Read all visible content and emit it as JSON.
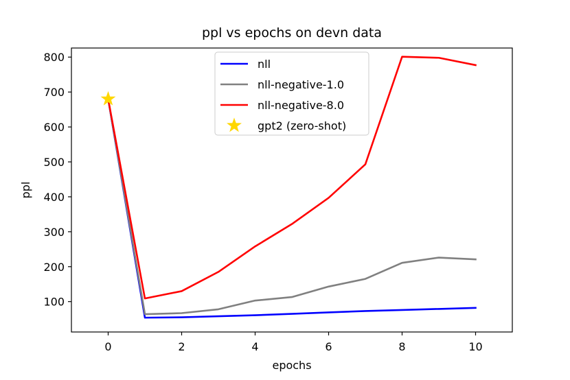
{
  "chart_data": {
    "type": "line",
    "title": "ppl vs epochs on devn data",
    "xlabel": "epochs",
    "ylabel": "ppl",
    "xlim": [
      -1,
      11
    ],
    "ylim": [
      13,
      826
    ],
    "xticks": [
      0,
      2,
      4,
      6,
      8,
      10
    ],
    "yticks": [
      100,
      200,
      300,
      400,
      500,
      600,
      700,
      800
    ],
    "grid": false,
    "legend_position": "top-center",
    "series": [
      {
        "name": "nll",
        "color": "#0000ff",
        "x": [
          0,
          1,
          2,
          3,
          4,
          5,
          6,
          7,
          8,
          9,
          10
        ],
        "y": [
          680,
          54,
          55,
          58,
          61,
          65,
          69,
          73,
          76,
          79,
          82
        ]
      },
      {
        "name": "nll-negative-1.0",
        "color": "#808080",
        "x": [
          0,
          1,
          2,
          3,
          4,
          5,
          6,
          7,
          8,
          9,
          10
        ],
        "y": [
          680,
          64,
          67,
          78,
          103,
          113,
          143,
          165,
          211,
          226,
          221
        ]
      },
      {
        "name": "nll-negative-8.0",
        "color": "#ff0000",
        "x": [
          0,
          1,
          2,
          3,
          4,
          5,
          6,
          7,
          8,
          9,
          10
        ],
        "y": [
          680,
          109,
          130,
          185,
          258,
          322,
          397,
          493,
          801,
          798,
          777
        ]
      }
    ],
    "markers": [
      {
        "name": "gpt2 (zero-shot)",
        "color": "#ffd700",
        "shape": "star",
        "x": 0,
        "y": 680
      }
    ]
  }
}
